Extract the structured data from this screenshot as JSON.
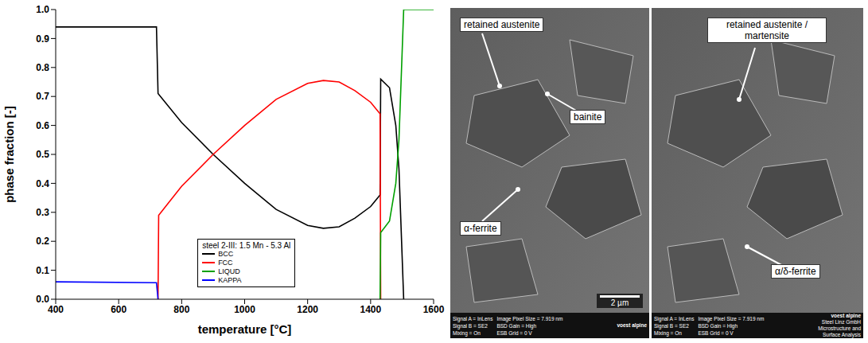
{
  "chart_data": {
    "type": "line",
    "xlabel": "temperature [°C]",
    "ylabel": "phase fraction [-]",
    "legend_title": "steel 2-III: 1.5 Mn - 5.3 Al",
    "legend": "lower center",
    "grid": false,
    "xlim": [
      400,
      1600
    ],
    "xticks": [
      400,
      600,
      800,
      1000,
      1200,
      1400,
      1600
    ],
    "ylim": [
      0,
      1
    ],
    "yticks": [
      {
        "value": 0,
        "label": "0.0"
      },
      0.1,
      0.2,
      0.3,
      0.4,
      0.5,
      0.6,
      0.7,
      0.8,
      0.9,
      {
        "value": 1,
        "label": "1.0"
      }
    ],
    "series": [
      {
        "name": "BCC",
        "color": "#000000",
        "x": [
          400,
          720,
          725,
          800,
          900,
          1000,
          1100,
          1200,
          1250,
          1300,
          1350,
          1400,
          1430,
          1432,
          1460,
          1480,
          1490,
          1500,
          1505
        ],
        "values": [
          0.94,
          0.94,
          0.71,
          0.61,
          0.5,
          0.4,
          0.31,
          0.255,
          0.245,
          0.25,
          0.28,
          0.32,
          0.36,
          0.76,
          0.73,
          0.6,
          0.45,
          0.15,
          0
        ]
      },
      {
        "name": "FCC",
        "color": "#ff0000",
        "x": [
          725,
          727,
          800,
          900,
          1000,
          1100,
          1200,
          1250,
          1300,
          1350,
          1400,
          1430,
          1432
        ],
        "values": [
          0,
          0.29,
          0.39,
          0.5,
          0.6,
          0.69,
          0.745,
          0.755,
          0.75,
          0.72,
          0.68,
          0.64,
          0
        ]
      },
      {
        "name": "LIQUD",
        "color": "#00a000",
        "x": [
          1430,
          1432,
          1460,
          1480,
          1490,
          1500,
          1505,
          1600
        ],
        "values": [
          0,
          0.23,
          0.27,
          0.4,
          0.55,
          0.85,
          1,
          1
        ]
      },
      {
        "name": "KAPPA",
        "color": "#0000ff",
        "x": [
          400,
          720,
          725
        ],
        "values": [
          0.06,
          0.057,
          0
        ]
      }
    ]
  },
  "images": [
    {
      "labels": [
        "retained austenite",
        "bainite",
        "α-ferrite"
      ],
      "scale_bar": "2 µm",
      "footer": {
        "settings": [
          "Signal A = InLens",
          "Image Pixel Size = 7.919 nm",
          "Signal B = SE2",
          "BSD Gain = High",
          "Mixing = On",
          "ESB Grid = 0 V"
        ],
        "brand": [
          "voest alpine"
        ]
      }
    },
    {
      "labels": [
        "retained austenite / martensite",
        "α/δ-ferrite"
      ],
      "footer": {
        "settings": [
          "Signal A = InLens",
          "Image Pixel Size = 7.919 nm",
          "Signal B = SE2",
          "BSD Gain = High",
          "Mixing = On",
          "ESB Grid = 0 V"
        ],
        "brand": [
          "voest alpine",
          "Steel Linz GmbH",
          "Microstructure and Surface Analysis"
        ]
      }
    }
  ]
}
